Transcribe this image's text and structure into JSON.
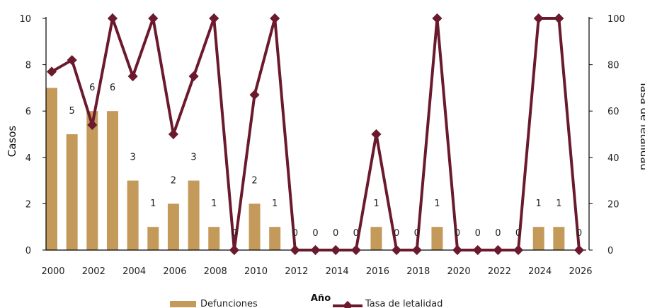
{
  "chart_data": {
    "type": "bar",
    "xlabel": "Año",
    "ylabel": "Casos",
    "y2label": "Tasa de letalidad",
    "ylim": [
      0,
      10
    ],
    "y2lim": [
      0,
      100
    ],
    "xlim": [
      2000,
      2026
    ],
    "yticks": [
      "0",
      "2",
      "4",
      "6",
      "8",
      "10"
    ],
    "y2ticks": [
      "0",
      "20",
      "40",
      "60",
      "80",
      "100"
    ],
    "xticks": [
      "2000",
      "2002",
      "2004",
      "2006",
      "2008",
      "2010",
      "2012",
      "2014",
      "2016",
      "2018",
      "2020",
      "2022",
      "2024",
      "2026"
    ],
    "x": [
      2000,
      2001,
      2002,
      2003,
      2004,
      2005,
      2006,
      2007,
      2008,
      2009,
      2010,
      2011,
      2012,
      2013,
      2014,
      2015,
      2016,
      2017,
      2018,
      2019,
      2020,
      2021,
      2022,
      2023,
      2024,
      2025,
      2026
    ],
    "series": [
      {
        "name": "Defunciones",
        "type": "bar",
        "axis": "left",
        "color": "#c49a5a",
        "values": [
          7,
          5,
          6,
          6,
          3,
          1,
          2,
          3,
          1,
          0,
          2,
          1,
          0,
          0,
          0,
          0,
          1,
          0,
          0,
          1,
          0,
          0,
          0,
          0,
          1,
          1,
          0
        ],
        "labels": [
          "",
          "5",
          "6",
          "6",
          "3",
          "1",
          "2",
          "3",
          "1",
          "0",
          "2",
          "1",
          "0",
          "0",
          "0",
          "0",
          "1",
          "0",
          "0",
          "1",
          "0",
          "0",
          "0",
          "0",
          "1",
          "1",
          "0"
        ]
      },
      {
        "name": "Tasa de letalidad",
        "type": "line",
        "axis": "right",
        "color": "#6b1a2e",
        "values": [
          77,
          82,
          54,
          100,
          75,
          100,
          50,
          75,
          100,
          0,
          67,
          100,
          0,
          0,
          0,
          0,
          50,
          0,
          0,
          100,
          0,
          0,
          0,
          0,
          100,
          100,
          0
        ]
      }
    ],
    "legend": "bottom",
    "grid": false
  }
}
